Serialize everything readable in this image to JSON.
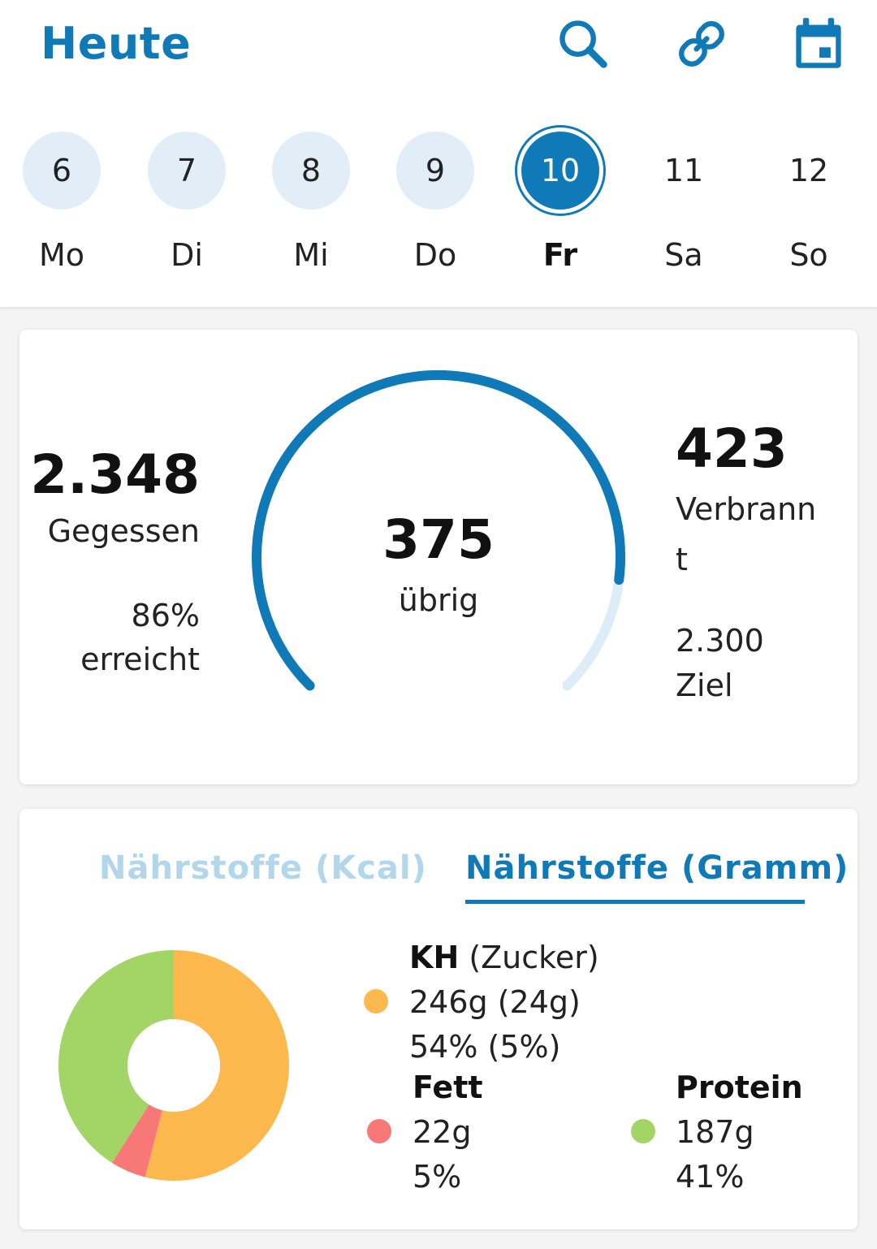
{
  "header": {
    "title": "Heute",
    "icons": [
      "search-icon",
      "link-icon",
      "calendar-icon"
    ],
    "accent_color": "#0f7ab7"
  },
  "week": [
    {
      "num": "6",
      "day": "Mo",
      "state": "past"
    },
    {
      "num": "7",
      "day": "Di",
      "state": "past"
    },
    {
      "num": "8",
      "day": "Mi",
      "state": "past"
    },
    {
      "num": "9",
      "day": "Do",
      "state": "past"
    },
    {
      "num": "10",
      "day": "Fr",
      "state": "active"
    },
    {
      "num": "11",
      "day": "Sa",
      "state": "future"
    },
    {
      "num": "12",
      "day": "So",
      "state": "future"
    }
  ],
  "summary": {
    "eaten_value": "2.348",
    "eaten_label": "Gegessen",
    "percent_value": "86%",
    "percent_label": "erreicht",
    "remaining_value": "375",
    "remaining_label": "übrig",
    "burned_value": "423",
    "burned_label_1": "Verbrann",
    "burned_label_2": "t",
    "goal_value": "2.300",
    "goal_label": "Ziel",
    "gauge_progress": 0.86
  },
  "nutrients": {
    "tab_kcal": "Nährstoffe (Kcal)",
    "tab_gramm": "Nährstoffe (Gramm)",
    "carbs": {
      "label_bold": "KH",
      "label_rest": " (Zucker)",
      "grams": "246g (24g)",
      "percent": "54% (5%)",
      "color": "#fdb94e"
    },
    "fat": {
      "label": "Fett",
      "grams": "22g",
      "percent": "5%",
      "color": "#f87777"
    },
    "protein": {
      "label": "Protein",
      "grams": "187g",
      "percent": "41%",
      "color": "#a2d565"
    }
  },
  "chart_data": {
    "type": "pie",
    "categories": [
      "KH",
      "Fett",
      "Protein"
    ],
    "values": [
      54,
      5,
      41
    ],
    "colors": [
      "#fdb94e",
      "#f87777",
      "#a2d565"
    ]
  }
}
